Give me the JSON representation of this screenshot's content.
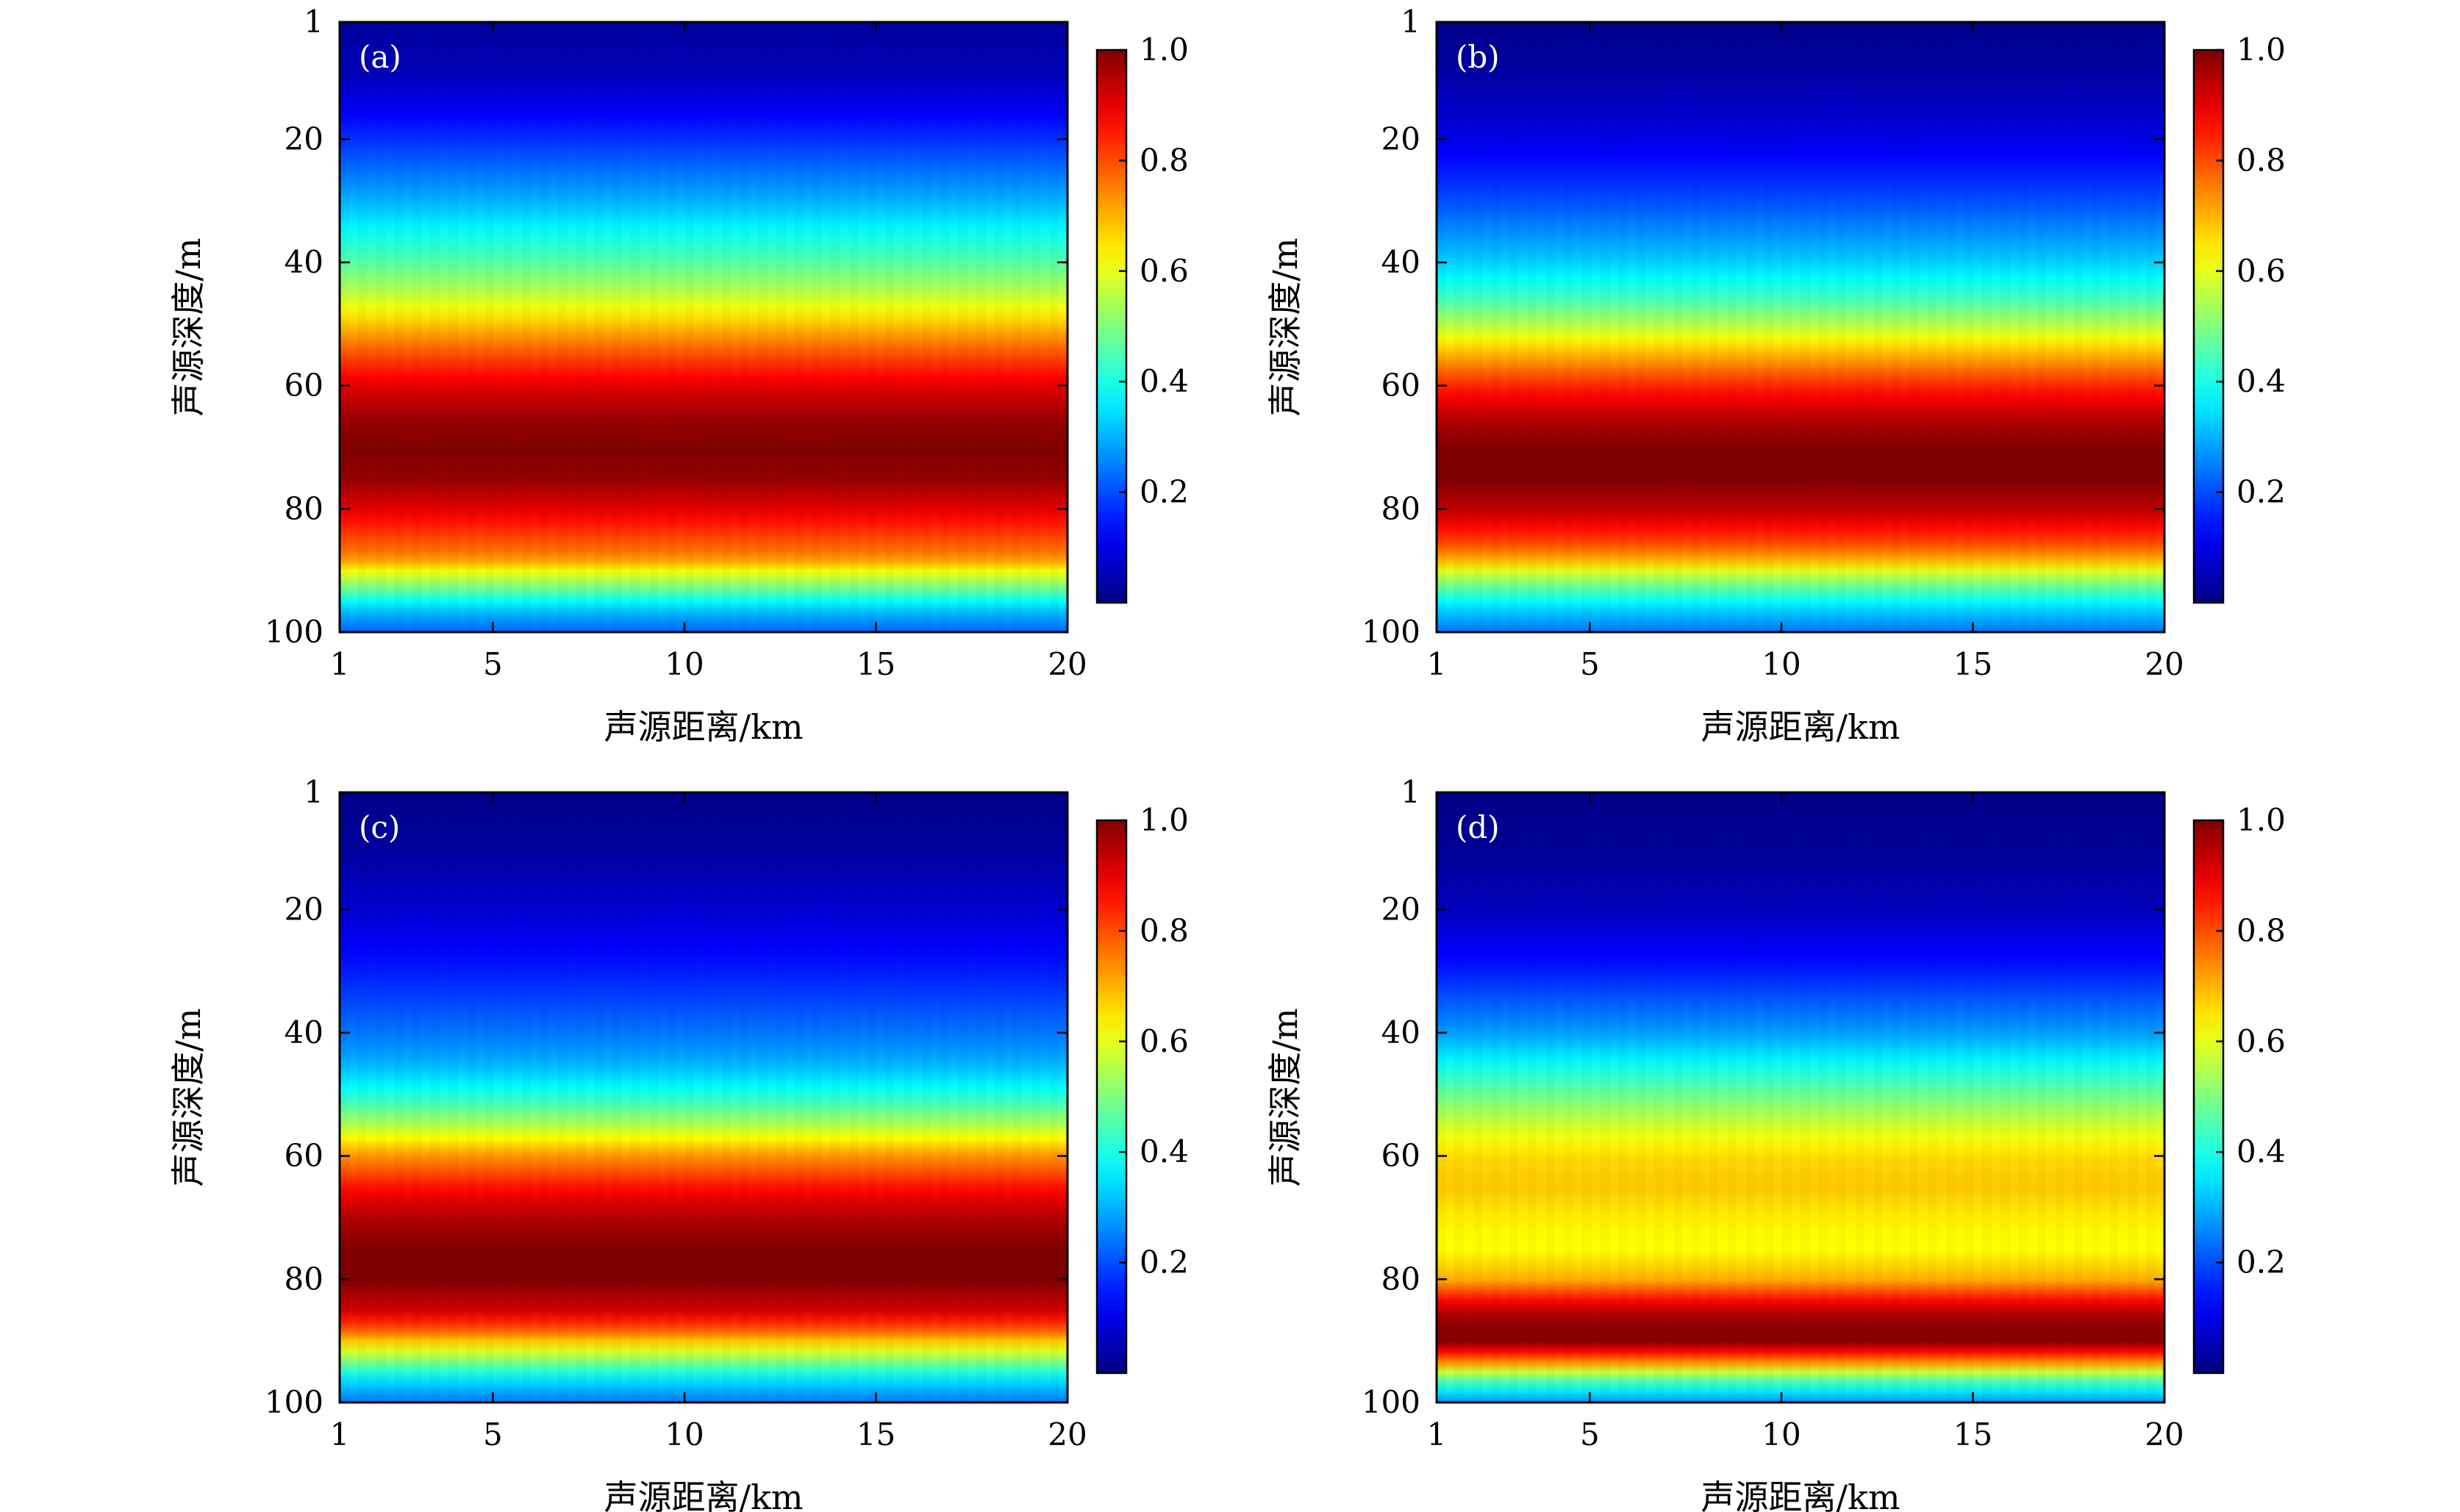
{
  "chart_data": [
    {
      "type": "heatmap",
      "panel_label": "(a)",
      "xlabel": "声源距离/km",
      "ylabel": "声源深度/m",
      "xlim": [
        1,
        20
      ],
      "ylim": [
        1,
        100
      ],
      "x_ticks": [
        "1",
        "5",
        "10",
        "15",
        "20"
      ],
      "y_ticks": [
        "1",
        "20",
        "40",
        "60",
        "80",
        "100"
      ],
      "colorbar": {
        "range": [
          0,
          1.0
        ],
        "ticks": [
          "0.2",
          "0.4",
          "0.6",
          "0.8",
          "1.0"
        ]
      },
      "depth_profile": {
        "depth_m": [
          1,
          10,
          20,
          30,
          40,
          45,
          50,
          55,
          60,
          65,
          70,
          75,
          80,
          85,
          88,
          90,
          93,
          96,
          100
        ],
        "value": [
          0.03,
          0.06,
          0.17,
          0.3,
          0.46,
          0.56,
          0.68,
          0.8,
          0.9,
          0.97,
          1.0,
          0.98,
          0.9,
          0.8,
          0.74,
          0.62,
          0.48,
          0.33,
          0.22
        ]
      }
    },
    {
      "type": "heatmap",
      "panel_label": "(b)",
      "xlabel": "声源距离/km",
      "ylabel": "声源深度/m",
      "xlim": [
        1,
        20
      ],
      "ylim": [
        1,
        100
      ],
      "x_ticks": [
        "1",
        "5",
        "10",
        "15",
        "20"
      ],
      "y_ticks": [
        "1",
        "20",
        "40",
        "60",
        "80",
        "100"
      ],
      "colorbar": {
        "range": [
          0,
          1.0
        ],
        "ticks": [
          "0.2",
          "0.4",
          "0.6",
          "0.8",
          "1.0"
        ]
      },
      "depth_profile": {
        "depth_m": [
          1,
          10,
          20,
          30,
          40,
          45,
          50,
          55,
          60,
          65,
          70,
          75,
          80,
          85,
          88,
          90,
          93,
          96,
          100
        ],
        "value": [
          0.01,
          0.04,
          0.1,
          0.2,
          0.33,
          0.42,
          0.55,
          0.7,
          0.84,
          0.94,
          1.0,
          1.0,
          0.94,
          0.82,
          0.72,
          0.6,
          0.46,
          0.34,
          0.24
        ]
      }
    },
    {
      "type": "heatmap",
      "panel_label": "(c)",
      "xlabel": "声源距离/km",
      "ylabel": "声源深度/m",
      "xlim": [
        1,
        20
      ],
      "ylim": [
        1,
        100
      ],
      "x_ticks": [
        "1",
        "5",
        "10",
        "15",
        "20"
      ],
      "y_ticks": [
        "1",
        "20",
        "40",
        "60",
        "80",
        "100"
      ],
      "colorbar": {
        "range": [
          0,
          1.0
        ],
        "ticks": [
          "0.2",
          "0.4",
          "0.6",
          "0.8",
          "1.0"
        ]
      },
      "depth_profile": {
        "depth_m": [
          1,
          10,
          20,
          30,
          40,
          45,
          50,
          55,
          60,
          65,
          70,
          75,
          80,
          85,
          88,
          90,
          93,
          96,
          100
        ],
        "value": [
          0.01,
          0.03,
          0.08,
          0.15,
          0.24,
          0.3,
          0.4,
          0.55,
          0.73,
          0.86,
          0.95,
          1.0,
          1.0,
          0.92,
          0.8,
          0.68,
          0.52,
          0.36,
          0.24
        ]
      }
    },
    {
      "type": "heatmap",
      "panel_label": "(d)",
      "xlabel": "声源距离/km",
      "ylabel": "声源深度/m",
      "xlim": [
        1,
        20
      ],
      "ylim": [
        1,
        100
      ],
      "x_ticks": [
        "1",
        "5",
        "10",
        "15",
        "20"
      ],
      "y_ticks": [
        "1",
        "20",
        "40",
        "60",
        "80",
        "100"
      ],
      "colorbar": {
        "range": [
          0,
          1.0
        ],
        "ticks": [
          "0.2",
          "0.4",
          "0.6",
          "0.8",
          "1.0"
        ]
      },
      "depth_profile": {
        "depth_m": [
          1,
          10,
          20,
          30,
          40,
          45,
          50,
          55,
          60,
          65,
          70,
          75,
          80,
          83,
          86,
          90,
          93,
          96,
          100
        ],
        "value": [
          0.01,
          0.02,
          0.06,
          0.15,
          0.28,
          0.38,
          0.48,
          0.58,
          0.66,
          0.68,
          0.64,
          0.62,
          0.7,
          0.85,
          0.97,
          1.0,
          0.78,
          0.48,
          0.26
        ]
      }
    }
  ]
}
